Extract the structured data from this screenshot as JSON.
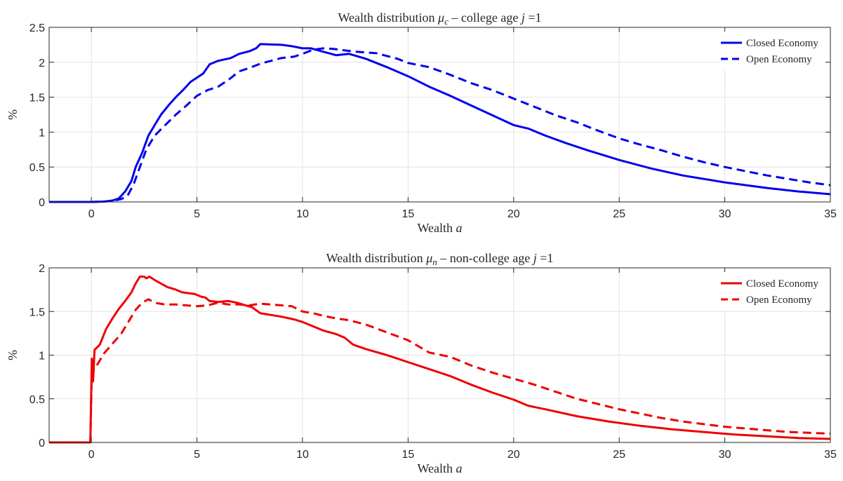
{
  "chart_data": [
    {
      "type": "line",
      "title_prefix": "Wealth distribution ",
      "title_symbol": "μ",
      "title_subscript": "c",
      "title_suffix": " – college age ",
      "title_var": "j",
      "title_end": " =1",
      "xlabel_text": "Wealth ",
      "xlabel_var": "a",
      "ylabel": "%",
      "xlim": [
        -2,
        35
      ],
      "ylim": [
        0,
        2.5
      ],
      "xticks": [
        0,
        5,
        10,
        15,
        20,
        25,
        30,
        35
      ],
      "yticks": [
        0,
        0.5,
        1,
        1.5,
        2,
        2.5
      ],
      "xtick_labels": [
        "0",
        "5",
        "10",
        "15",
        "20",
        "25",
        "30",
        "35"
      ],
      "ytick_labels": [
        "0",
        "0.5",
        "1",
        "1.5",
        "2",
        "2.5"
      ],
      "grid": true,
      "legend_position": "top-right",
      "series": [
        {
          "name": "Closed Economy",
          "color": "#0000ee",
          "dash": "solid",
          "points": [
            [
              -2,
              0
            ],
            [
              0,
              0
            ],
            [
              0.6,
              0.005
            ],
            [
              1,
              0.02
            ],
            [
              1.3,
              0.05
            ],
            [
              1.6,
              0.15
            ],
            [
              1.9,
              0.3
            ],
            [
              2.1,
              0.5
            ],
            [
              2.4,
              0.7
            ],
            [
              2.7,
              0.95
            ],
            [
              3,
              1.1
            ],
            [
              3.3,
              1.25
            ],
            [
              3.7,
              1.4
            ],
            [
              4,
              1.5
            ],
            [
              4.4,
              1.62
            ],
            [
              4.7,
              1.72
            ],
            [
              5,
              1.78
            ],
            [
              5.3,
              1.84
            ],
            [
              5.6,
              1.97
            ],
            [
              6,
              2.02
            ],
            [
              6.6,
              2.06
            ],
            [
              7,
              2.12
            ],
            [
              7.5,
              2.16
            ],
            [
              7.8,
              2.2
            ],
            [
              8,
              2.26
            ],
            [
              9,
              2.25
            ],
            [
              9.5,
              2.23
            ],
            [
              10,
              2.2
            ],
            [
              10.4,
              2.2
            ],
            [
              11,
              2.15
            ],
            [
              11.6,
              2.1
            ],
            [
              12.2,
              2.12
            ],
            [
              13,
              2.05
            ],
            [
              14,
              1.93
            ],
            [
              15,
              1.8
            ],
            [
              16,
              1.65
            ],
            [
              17,
              1.52
            ],
            [
              18,
              1.38
            ],
            [
              19,
              1.24
            ],
            [
              20,
              1.1
            ],
            [
              20.7,
              1.05
            ],
            [
              21.5,
              0.95
            ],
            [
              22.5,
              0.84
            ],
            [
              23.5,
              0.74
            ],
            [
              25,
              0.6
            ],
            [
              26.5,
              0.48
            ],
            [
              28,
              0.38
            ],
            [
              30,
              0.28
            ],
            [
              32,
              0.2
            ],
            [
              33.5,
              0.15
            ],
            [
              35,
              0.11
            ]
          ]
        },
        {
          "name": "Open Economy",
          "color": "#0000ee",
          "dash": "dashed",
          "points": [
            [
              -2,
              0
            ],
            [
              0,
              0
            ],
            [
              0.6,
              0.005
            ],
            [
              1,
              0.015
            ],
            [
              1.4,
              0.04
            ],
            [
              1.7,
              0.08
            ],
            [
              2,
              0.25
            ],
            [
              2.3,
              0.5
            ],
            [
              2.6,
              0.75
            ],
            [
              3,
              0.95
            ],
            [
              3.5,
              1.1
            ],
            [
              4,
              1.25
            ],
            [
              4.5,
              1.38
            ],
            [
              5,
              1.52
            ],
            [
              5.5,
              1.6
            ],
            [
              6,
              1.65
            ],
            [
              6.5,
              1.75
            ],
            [
              7,
              1.87
            ],
            [
              7.5,
              1.92
            ],
            [
              8,
              1.98
            ],
            [
              8.5,
              2.02
            ],
            [
              9,
              2.06
            ],
            [
              9.6,
              2.08
            ],
            [
              10,
              2.12
            ],
            [
              10.5,
              2.18
            ],
            [
              11,
              2.2
            ],
            [
              11.5,
              2.19
            ],
            [
              12,
              2.17
            ],
            [
              12.6,
              2.15
            ],
            [
              13.5,
              2.13
            ],
            [
              14.5,
              2.05
            ],
            [
              15,
              1.99
            ],
            [
              16,
              1.93
            ],
            [
              17,
              1.82
            ],
            [
              18,
              1.7
            ],
            [
              19,
              1.6
            ],
            [
              20,
              1.48
            ],
            [
              21,
              1.36
            ],
            [
              22,
              1.24
            ],
            [
              23,
              1.14
            ],
            [
              24,
              1.02
            ],
            [
              25,
              0.91
            ],
            [
              26,
              0.82
            ],
            [
              27,
              0.74
            ],
            [
              28,
              0.65
            ],
            [
              29,
              0.57
            ],
            [
              30,
              0.5
            ],
            [
              31,
              0.44
            ],
            [
              32,
              0.38
            ],
            [
              33,
              0.33
            ],
            [
              34,
              0.28
            ],
            [
              35,
              0.24
            ]
          ]
        }
      ]
    },
    {
      "type": "line",
      "title_prefix": "Wealth distribution ",
      "title_symbol": "μ",
      "title_subscript": "n",
      "title_suffix": " – non-college age ",
      "title_var": "j",
      "title_end": " =1",
      "xlabel_text": "Wealth ",
      "xlabel_var": "a",
      "ylabel": "%",
      "xlim": [
        -2,
        35
      ],
      "ylim": [
        0,
        2
      ],
      "xticks": [
        0,
        5,
        10,
        15,
        20,
        25,
        30,
        35
      ],
      "yticks": [
        0,
        0.5,
        1,
        1.5,
        2
      ],
      "xtick_labels": [
        "0",
        "5",
        "10",
        "15",
        "20",
        "25",
        "30",
        "35"
      ],
      "ytick_labels": [
        "0",
        "0.5",
        "1",
        "1.5",
        "2"
      ],
      "grid": true,
      "legend_position": "top-right",
      "series": [
        {
          "name": "Closed Economy",
          "color": "#ee0000",
          "dash": "solid",
          "points": [
            [
              -2,
              0
            ],
            [
              -0.05,
              0
            ],
            [
              0.02,
              0.96
            ],
            [
              0.08,
              0.7
            ],
            [
              0.15,
              1.06
            ],
            [
              0.4,
              1.12
            ],
            [
              0.7,
              1.3
            ],
            [
              1,
              1.42
            ],
            [
              1.3,
              1.53
            ],
            [
              1.6,
              1.62
            ],
            [
              1.9,
              1.72
            ],
            [
              2.1,
              1.82
            ],
            [
              2.3,
              1.9
            ],
            [
              2.5,
              1.9
            ],
            [
              2.6,
              1.88
            ],
            [
              2.75,
              1.9
            ],
            [
              3,
              1.86
            ],
            [
              3.3,
              1.82
            ],
            [
              3.6,
              1.78
            ],
            [
              4,
              1.75
            ],
            [
              4.3,
              1.72
            ],
            [
              4.6,
              1.71
            ],
            [
              4.9,
              1.7
            ],
            [
              5.2,
              1.67
            ],
            [
              5.4,
              1.66
            ],
            [
              5.6,
              1.62
            ],
            [
              6,
              1.61
            ],
            [
              6.5,
              1.62
            ],
            [
              6.9,
              1.6
            ],
            [
              7.3,
              1.57
            ],
            [
              7.6,
              1.55
            ],
            [
              8,
              1.48
            ],
            [
              8.5,
              1.46
            ],
            [
              9,
              1.44
            ],
            [
              9.6,
              1.41
            ],
            [
              10,
              1.38
            ],
            [
              10.5,
              1.33
            ],
            [
              11,
              1.28
            ],
            [
              11.6,
              1.24
            ],
            [
              12,
              1.2
            ],
            [
              12.4,
              1.12
            ],
            [
              13,
              1.07
            ],
            [
              14,
              1.0
            ],
            [
              15,
              0.92
            ],
            [
              16,
              0.84
            ],
            [
              17,
              0.76
            ],
            [
              18,
              0.66
            ],
            [
              19,
              0.57
            ],
            [
              20,
              0.49
            ],
            [
              20.7,
              0.42
            ],
            [
              21.5,
              0.38
            ],
            [
              23,
              0.3
            ],
            [
              24.5,
              0.24
            ],
            [
              26,
              0.19
            ],
            [
              27.5,
              0.15
            ],
            [
              29,
              0.12
            ],
            [
              30.5,
              0.09
            ],
            [
              32,
              0.07
            ],
            [
              33.5,
              0.05
            ],
            [
              35,
              0.04
            ]
          ]
        },
        {
          "name": "Open Economy",
          "color": "#ee0000",
          "dash": "dashed",
          "points": [
            [
              -2,
              0
            ],
            [
              -0.05,
              0
            ],
            [
              0.02,
              0.8
            ],
            [
              0.3,
              0.9
            ],
            [
              0.6,
              1.02
            ],
            [
              1,
              1.13
            ],
            [
              1.4,
              1.24
            ],
            [
              1.8,
              1.4
            ],
            [
              2.1,
              1.52
            ],
            [
              2.4,
              1.6
            ],
            [
              2.7,
              1.64
            ],
            [
              3,
              1.6
            ],
            [
              3.5,
              1.58
            ],
            [
              4,
              1.58
            ],
            [
              4.5,
              1.57
            ],
            [
              5,
              1.56
            ],
            [
              5.5,
              1.57
            ],
            [
              6,
              1.6
            ],
            [
              6.5,
              1.58
            ],
            [
              7,
              1.58
            ],
            [
              7.5,
              1.57
            ],
            [
              8,
              1.59
            ],
            [
              8.5,
              1.58
            ],
            [
              9,
              1.57
            ],
            [
              9.5,
              1.56
            ],
            [
              10,
              1.5
            ],
            [
              10.5,
              1.48
            ],
            [
              11,
              1.45
            ],
            [
              11.6,
              1.42
            ],
            [
              12.2,
              1.4
            ],
            [
              13,
              1.35
            ],
            [
              14,
              1.26
            ],
            [
              15,
              1.17
            ],
            [
              16,
              1.03
            ],
            [
              17,
              0.98
            ],
            [
              18,
              0.88
            ],
            [
              19,
              0.8
            ],
            [
              20,
              0.73
            ],
            [
              21,
              0.66
            ],
            [
              22,
              0.58
            ],
            [
              23,
              0.5
            ],
            [
              24,
              0.44
            ],
            [
              25,
              0.38
            ],
            [
              26,
              0.33
            ],
            [
              27,
              0.28
            ],
            [
              28,
              0.24
            ],
            [
              29,
              0.21
            ],
            [
              30,
              0.18
            ],
            [
              31,
              0.16
            ],
            [
              32,
              0.14
            ],
            [
              33,
              0.12
            ],
            [
              34,
              0.11
            ],
            [
              35,
              0.1
            ]
          ]
        }
      ]
    }
  ]
}
